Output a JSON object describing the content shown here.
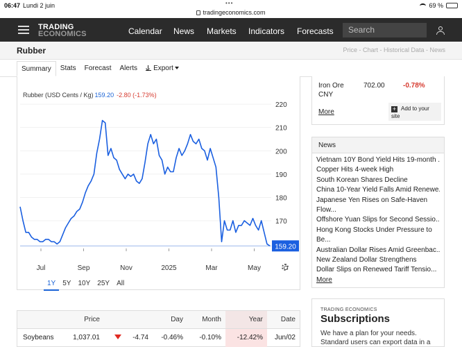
{
  "status_bar": {
    "time": "06:47",
    "date": "Lundi 2 juin",
    "url": "tradingeconomics.com",
    "battery": "69 %",
    "battery_level": 0.69
  },
  "navbar": {
    "logo_line1": "TRADING",
    "logo_line2": "ECONOMICS",
    "links": [
      "Calendar",
      "News",
      "Markets",
      "Indicators",
      "Forecasts"
    ],
    "search_placeholder": "Search"
  },
  "page": {
    "title": "Rubber",
    "breadcrumbs": "Price - Chart - Historical Data - News"
  },
  "tabs": [
    "Summary",
    "Stats",
    "Forecast",
    "Alerts",
    "Export"
  ],
  "chart_header": {
    "label": "Rubber (USD Cents / Kg)",
    "price": "159.20",
    "change": "-2.80 (-1.73%)"
  },
  "chart_data": {
    "type": "line",
    "series": [
      {
        "values": [
          176,
          170,
          165,
          165,
          163,
          162,
          162,
          161,
          161,
          162,
          162,
          161,
          161,
          160,
          161,
          164,
          167,
          169,
          171,
          172,
          174,
          175,
          178,
          182,
          185,
          187,
          190,
          199,
          205,
          213,
          212,
          198,
          201,
          197,
          196,
          192,
          190,
          188,
          190,
          189,
          190,
          187,
          186,
          188,
          195,
          203,
          207,
          203,
          205,
          198,
          196,
          190,
          193,
          191,
          191,
          197,
          201,
          198,
          200,
          203,
          207,
          204,
          203,
          205,
          201,
          200,
          196,
          201,
          197,
          193,
          180,
          161,
          170,
          166,
          166,
          170,
          165,
          168,
          168,
          170,
          169,
          168,
          171,
          168,
          166,
          170,
          165,
          160,
          159.2
        ]
      }
    ],
    "x_ticks": [
      "Jul",
      "Sep",
      "Nov",
      "2025",
      "Mar",
      "May"
    ],
    "y_ticks": [
      170,
      180,
      190,
      200,
      210,
      220
    ],
    "ylim": [
      159,
      223
    ],
    "last_value_label": "159.20",
    "color": "#1a5fe0"
  },
  "ranges": [
    "1Y",
    "5Y",
    "10Y",
    "25Y",
    "All"
  ],
  "quote_box": {
    "name": "Iron Ore CNY",
    "value": "702.00",
    "change": "-0.78%",
    "more": "More",
    "add_label": "Add to your site"
  },
  "news": {
    "header": "News",
    "items": [
      "Vietnam 10Y Bond Yield Hits 19-month ...",
      "Copper Hits 4-week High",
      "South Korean Shares Decline",
      "China 10-Year Yield Falls Amid Renewe...",
      "Japanese Yen Rises on Safe-Haven",
      "Flow...",
      "Offshore Yuan Slips for Second Sessio...",
      "Hong Kong Stocks Under Pressure to",
      "Be...",
      "Australian Dollar Rises Amid Greenbac...",
      "New Zealand Dollar Strengthens",
      "Dollar Slips on Renewed Tariff Tensio..."
    ],
    "more": "More"
  },
  "table": {
    "headers": [
      "",
      "Price",
      "",
      "Day",
      "Month",
      "Year",
      "Date"
    ],
    "rows": [
      {
        "name": "Soybeans",
        "price": "1,037.01",
        "day": "-4.74",
        "day_pct": "-0.46%",
        "month": "-0.10%",
        "year": "-12.42%",
        "date": "Jun/02"
      }
    ]
  },
  "subscriptions": {
    "brand": "TRADING ECONOMICS",
    "title": "Subscriptions",
    "desc": "We have a plan for your needs. Standard users can export data in a"
  }
}
